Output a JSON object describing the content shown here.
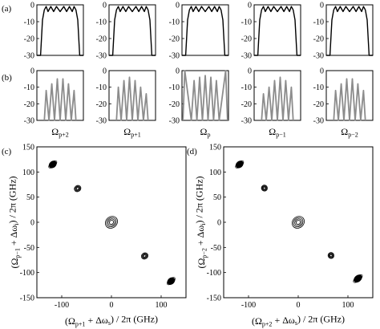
{
  "panel_labels": [
    "(a)",
    "(b)",
    "(c)",
    "(d)"
  ],
  "spectral_xlabels": [
    "Ω_{p+2}",
    "Ω_{p+1}",
    "Ω_p",
    "Ω_{p−1}",
    "Ω_{p−2}"
  ],
  "colors": {
    "panel_a_curve": "#000000",
    "panel_b_curve": "#8c8c8c",
    "contour": "#000000",
    "axes": "#000000"
  },
  "chart_data": [
    {
      "type": "line",
      "panel": "(a)",
      "rows": 1,
      "columns": 5,
      "ylim": [
        -30,
        0
      ],
      "yticks": [
        0,
        -10,
        -20,
        -30
      ],
      "xlabels": [
        "Ω_{p+2}",
        "Ω_{p+1}",
        "Ω_p",
        "Ω_{p−1}",
        "Ω_{p−2}"
      ],
      "x": [
        0,
        0.08,
        0.12,
        0.16,
        0.2,
        0.24,
        0.3,
        0.36,
        0.42,
        0.5,
        0.58,
        0.64,
        0.7,
        0.76,
        0.8,
        0.84,
        0.88,
        0.92,
        1
      ],
      "y": [
        -30,
        -30,
        -9,
        -3,
        -1,
        -4,
        -1,
        -4,
        -1,
        -4,
        -1,
        -4,
        -1,
        -4,
        -1,
        -3,
        -9,
        -30,
        -30
      ]
    },
    {
      "type": "line",
      "panel": "(b)",
      "rows": 1,
      "columns": 5,
      "ylim": [
        -30,
        0
      ],
      "yticks": [
        0,
        -10,
        -20,
        -30
      ],
      "series": [
        {
          "x": [
            0.16,
            0.2,
            0.26,
            0.32,
            0.38,
            0.44,
            0.5,
            0.56,
            0.62,
            0.68,
            0.74,
            0.8,
            0.84
          ],
          "y": [
            -30,
            -12,
            -30,
            -8,
            -30,
            -5,
            -30,
            -5,
            -30,
            -8,
            -30,
            -12,
            -30
          ]
        },
        {
          "x": [
            0.16,
            0.2,
            0.26,
            0.32,
            0.38,
            0.44,
            0.5,
            0.56,
            0.62,
            0.68,
            0.74,
            0.8,
            0.84
          ],
          "y": [
            -30,
            -10,
            -30,
            -6,
            -30,
            -4,
            -30,
            -6,
            -30,
            -10,
            -30,
            -14,
            -30
          ]
        },
        {
          "x": [
            0.02,
            0.06,
            0.2,
            0.26,
            0.32,
            0.38,
            0.44,
            0.5,
            0.56,
            0.62,
            0.68,
            0.74,
            0.8,
            0.94,
            0.98
          ],
          "y": [
            -30,
            0,
            -30,
            -6,
            -30,
            -4,
            -30,
            -3,
            -30,
            -4,
            -30,
            -6,
            -30,
            0,
            -30
          ]
        },
        {
          "x": [
            0.16,
            0.2,
            0.26,
            0.32,
            0.38,
            0.44,
            0.5,
            0.56,
            0.62,
            0.68,
            0.74,
            0.8,
            0.84
          ],
          "y": [
            -30,
            -14,
            -30,
            -10,
            -30,
            -6,
            -30,
            -4,
            -30,
            -6,
            -30,
            -10,
            -30
          ]
        },
        {
          "x": [
            0.16,
            0.2,
            0.26,
            0.32,
            0.38,
            0.44,
            0.5,
            0.56,
            0.62,
            0.68,
            0.74,
            0.8,
            0.84
          ],
          "y": [
            -30,
            -12,
            -30,
            -8,
            -30,
            -5,
            -30,
            -5,
            -30,
            -8,
            -30,
            -12,
            -30
          ]
        }
      ]
    },
    {
      "type": "contour",
      "panel": "(c)",
      "xlabel": "(Ω_{p+1} + Δω_s) / 2π (GHz)",
      "ylabel": "(Ω_{p−1} + Δω_i) / 2π (GHz)",
      "xlim": [
        -150,
        150
      ],
      "ylim": [
        -150,
        150
      ],
      "xticks": [
        -100,
        0,
        100
      ],
      "yticks": [
        150,
        100,
        50,
        0,
        -50,
        -100,
        -150
      ],
      "islands": [
        {
          "x": -118,
          "y": 115,
          "rx": 8,
          "ry": 6,
          "filled": true
        },
        {
          "x": -68,
          "y": 67,
          "rx": 7,
          "ry": 6,
          "filled": false
        },
        {
          "x": 0,
          "y": 0,
          "rx": 13,
          "ry": 11,
          "filled": false
        },
        {
          "x": 67,
          "y": -67,
          "rx": 7,
          "ry": 6,
          "filled": false
        },
        {
          "x": 120,
          "y": -117,
          "rx": 8,
          "ry": 6,
          "filled": true
        }
      ]
    },
    {
      "type": "contour",
      "panel": "(d)",
      "xlabel": "(Ω_{p+2} + Δω_s) / 2π (GHz)",
      "ylabel": "(Ω_{p−2} + Δω_i) / 2π (GHz)",
      "xlim": [
        -150,
        150
      ],
      "ylim": [
        -150,
        150
      ],
      "xticks": [
        -100,
        0,
        100
      ],
      "yticks": [
        150,
        100,
        50,
        0,
        -50,
        -100,
        -150
      ],
      "islands": [
        {
          "x": -118,
          "y": 115,
          "rx": 8,
          "ry": 6,
          "filled": true
        },
        {
          "x": -68,
          "y": 68,
          "rx": 6,
          "ry": 6,
          "filled": false
        },
        {
          "x": 0,
          "y": 0,
          "rx": 13,
          "ry": 11,
          "filled": false
        },
        {
          "x": 66,
          "y": -66,
          "rx": 6,
          "ry": 6,
          "filled": false
        },
        {
          "x": 120,
          "y": -112,
          "rx": 9,
          "ry": 6,
          "filled": true
        }
      ]
    }
  ]
}
